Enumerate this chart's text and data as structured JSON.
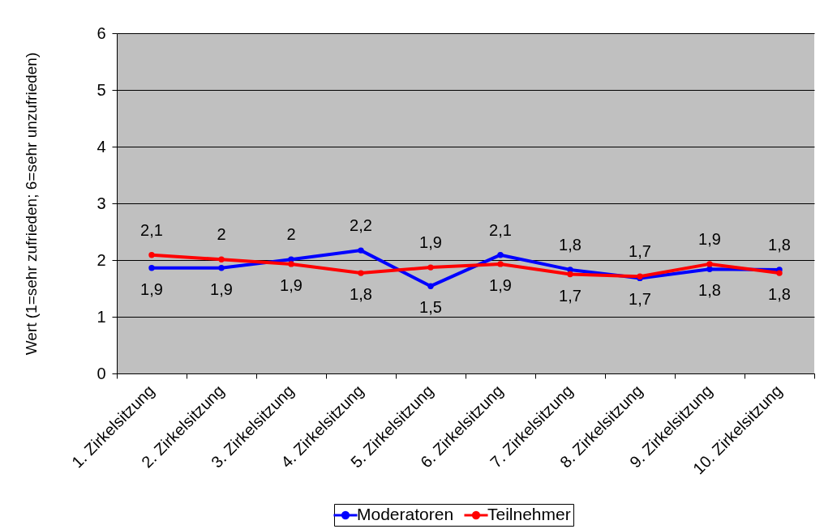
{
  "chart_data": {
    "type": "line",
    "ylabel": "Wert (1=sehr zufrieden; 6=sehr unzufrieden)",
    "categories": [
      "1. Zirkelsitzung",
      "2. Zirkelsitzung",
      "3. Zirkelsitzung",
      "4. Zirkelsitzung",
      "5. Zirkelsitzung",
      "6. Zirkelsitzung",
      "7. Zirkelsitzung",
      "8. Zirkelsitzung",
      "9. Zirkelsitzung",
      "10. Zirkelsitzung"
    ],
    "series": [
      {
        "name": "Moderatoren",
        "color": "#0000ff",
        "values": [
          1.86,
          1.86,
          2.01,
          2.17,
          1.54,
          2.09,
          1.83,
          1.68,
          1.84,
          1.83
        ],
        "value_labels": [
          "1,9",
          "1,9",
          "2",
          "2,2",
          "1,5",
          "2,1",
          "1,8",
          "1,7",
          "1,8",
          "1,8"
        ]
      },
      {
        "name": "Teilnehmer",
        "color": "#ff0000",
        "values": [
          2.09,
          2.01,
          1.93,
          1.77,
          1.87,
          1.93,
          1.75,
          1.71,
          1.93,
          1.77
        ],
        "value_labels": [
          "2,1",
          "2",
          "1,9",
          "1,8",
          "1,9",
          "1,9",
          "1,7",
          "1,7",
          "1,9",
          "1,8"
        ]
      }
    ],
    "ylim": [
      0,
      6
    ],
    "yticks": [
      0,
      1,
      2,
      3,
      4,
      5,
      6
    ],
    "grid": "y",
    "legend": "bottom",
    "marker": "circle",
    "line_style": "solid"
  }
}
